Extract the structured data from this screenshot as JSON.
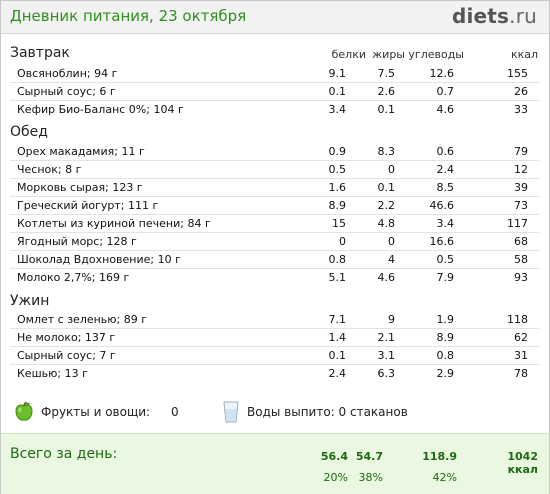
{
  "header": {
    "title": "Дневник питания, 23 октября",
    "logo_main": "diets",
    "logo_tld": ".ru"
  },
  "columns": {
    "protein": "белки",
    "fat": "жиры",
    "carbs": "углеводы",
    "kcal": "ккал"
  },
  "meals": [
    {
      "name": "Завтрак",
      "items": [
        {
          "name": "Овсяноблин; 94 г",
          "p": "9.1",
          "f": "7.5",
          "c": "12.6",
          "k": "155"
        },
        {
          "name": "Сырный соус; 6 г",
          "p": "0.1",
          "f": "2.6",
          "c": "0.7",
          "k": "26"
        },
        {
          "name": "Кефир Био-Баланс 0%; 104 г",
          "p": "3.4",
          "f": "0.1",
          "c": "4.6",
          "k": "33"
        }
      ]
    },
    {
      "name": "Обед",
      "items": [
        {
          "name": "Орех макадамия; 11 г",
          "p": "0.9",
          "f": "8.3",
          "c": "0.6",
          "k": "79"
        },
        {
          "name": "Чеснок; 8 г",
          "p": "0.5",
          "f": "0",
          "c": "2.4",
          "k": "12"
        },
        {
          "name": "Морковь сырая; 123 г",
          "p": "1.6",
          "f": "0.1",
          "c": "8.5",
          "k": "39"
        },
        {
          "name": "Греческий йогурт; 111 г",
          "p": "8.9",
          "f": "2.2",
          "c": "46.6",
          "k": "73"
        },
        {
          "name": "Котлеты из куриной печени; 84 г",
          "p": "15",
          "f": "4.8",
          "c": "3.4",
          "k": "117"
        },
        {
          "name": "Ягодный морс; 128 г",
          "p": "0",
          "f": "0",
          "c": "16.6",
          "k": "68"
        },
        {
          "name": "Шоколад Вдохновение; 10 г",
          "p": "0.8",
          "f": "4",
          "c": "0.5",
          "k": "58"
        },
        {
          "name": "Молоко 2,7%; 169 г",
          "p": "5.1",
          "f": "4.6",
          "c": "7.9",
          "k": "93"
        }
      ]
    },
    {
      "name": "Ужин",
      "items": [
        {
          "name": "Омлет с зеленью; 89 г",
          "p": "7.1",
          "f": "9",
          "c": "1.9",
          "k": "118"
        },
        {
          "name": "Не молоко; 137 г",
          "p": "1.4",
          "f": "2.1",
          "c": "8.9",
          "k": "62"
        },
        {
          "name": "Сырный соус; 7 г",
          "p": "0.1",
          "f": "3.1",
          "c": "0.8",
          "k": "31"
        },
        {
          "name": "Кешью; 13 г",
          "p": "2.4",
          "f": "6.3",
          "c": "2.9",
          "k": "78"
        }
      ]
    }
  ],
  "extras": {
    "fruits_label": "Фрукты и овощи:",
    "fruits_value": "0",
    "water_label": "Воды выпито: 0 стаканов"
  },
  "totals": {
    "label": "Всего за день:",
    "protein": "56.4",
    "fat": "54.7",
    "carbs": "118.9",
    "kcal": "1042 ккал",
    "protein_pct": "20%",
    "fat_pct": "38%",
    "carbs_pct": "42%"
  },
  "icons": {
    "fruits": "green-apple-icon",
    "water": "water-glass-icon"
  },
  "colors": {
    "title": "#2f8f1d",
    "total_bg": "#eaf7e1",
    "total_text": "#1d6a10"
  }
}
